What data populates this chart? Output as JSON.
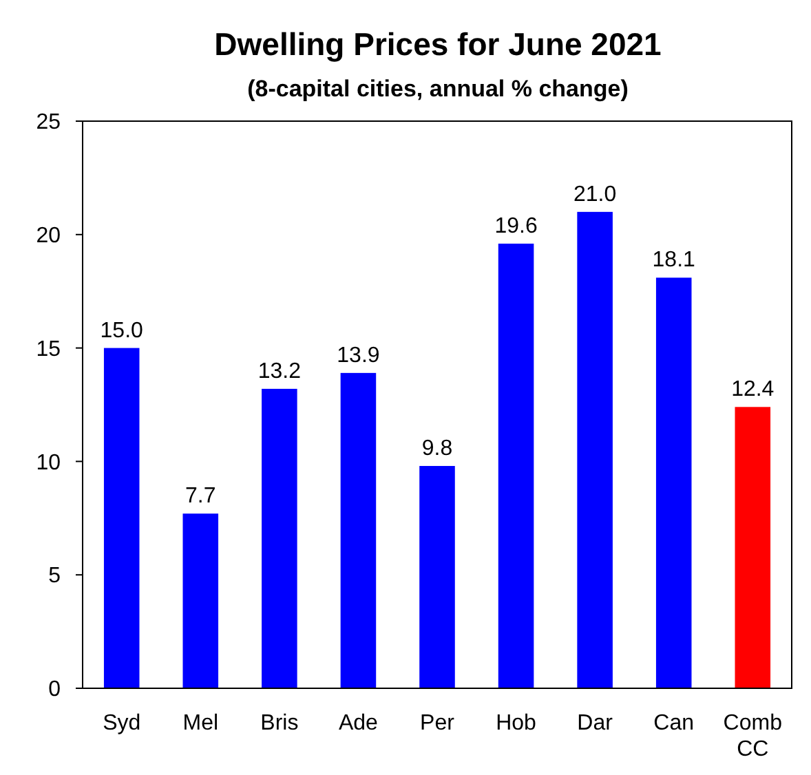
{
  "chart_data": {
    "type": "bar",
    "title": "Dwelling Prices for June 2021",
    "subtitle": "(8-capital cities, annual % change)",
    "categories": [
      "Syd",
      "Mel",
      "Bris",
      "Ade",
      "Per",
      "Hob",
      "Dar",
      "Can",
      "Comb CC"
    ],
    "values": [
      15.0,
      7.7,
      13.2,
      13.9,
      9.8,
      19.6,
      21.0,
      18.1,
      12.4
    ],
    "value_labels": [
      "15.0",
      "7.7",
      "13.2",
      "13.9",
      "9.8",
      "19.6",
      "21.0",
      "18.1",
      "12.4"
    ],
    "colors": [
      "#0000ff",
      "#0000ff",
      "#0000ff",
      "#0000ff",
      "#0000ff",
      "#0000ff",
      "#0000ff",
      "#0000ff",
      "#ff0000"
    ],
    "ylim": [
      0,
      25
    ],
    "yticks": [
      0,
      5,
      10,
      15,
      20,
      25
    ],
    "grid": false
  }
}
